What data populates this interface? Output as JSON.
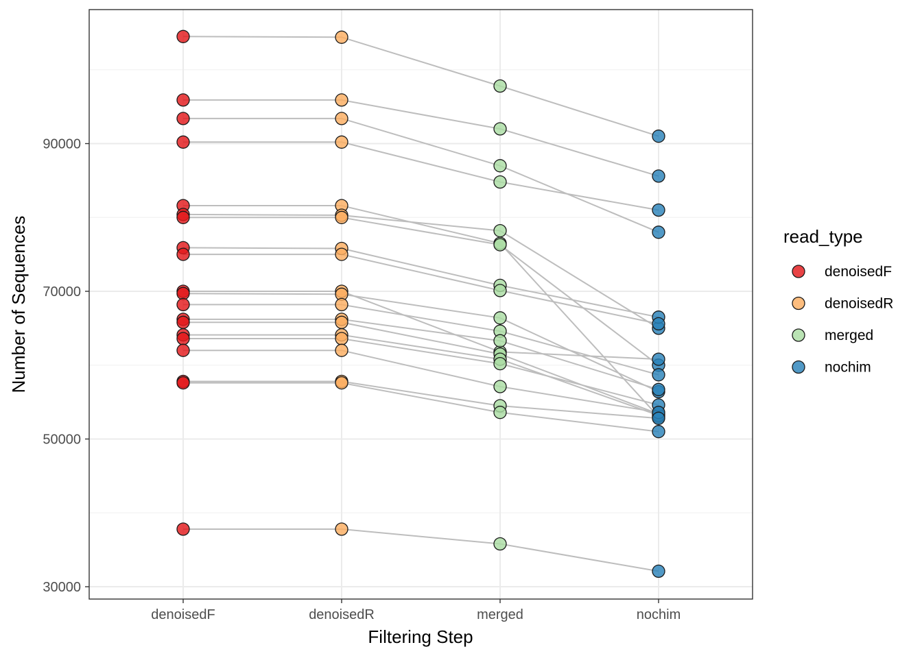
{
  "chart_data": {
    "type": "line",
    "xlabel": "Filtering Step",
    "ylabel": "Number of Sequences",
    "categories": [
      "denoisedF",
      "denoisedR",
      "merged",
      "nochim"
    ],
    "y_ticks": [
      30000,
      50000,
      70000,
      90000
    ],
    "y_tick_labels": [
      "30000",
      "50000",
      "70000",
      "90000"
    ],
    "ylim": [
      29000,
      109000
    ],
    "grid": true,
    "legend": {
      "title": "read_type",
      "placement": "right",
      "entries": [
        "denoisedF",
        "denoisedR",
        "merged",
        "nochim"
      ]
    },
    "colors": {
      "denoisedF": "#e31a1c",
      "denoisedR": "#fdae61",
      "merged": "#abdda4",
      "nochim": "#2b83ba",
      "line": "#bdbdbd"
    },
    "samples": [
      [
        104500,
        104400,
        97800,
        91000
      ],
      [
        95900,
        95900,
        92000,
        85600
      ],
      [
        93400,
        93400,
        87000,
        78000
      ],
      [
        90200,
        90200,
        84800,
        81000
      ],
      [
        81600,
        81600,
        76500,
        53000
      ],
      [
        80400,
        80300,
        78200,
        65000
      ],
      [
        80000,
        80000,
        76300,
        60000
      ],
      [
        75900,
        75800,
        70800,
        66500
      ],
      [
        75000,
        75000,
        70100,
        65600
      ],
      [
        70000,
        70000,
        61800,
        60800
      ],
      [
        69700,
        69600,
        66400,
        56400
      ],
      [
        68200,
        68200,
        64600,
        58700
      ],
      [
        66200,
        66200,
        63300,
        56700
      ],
      [
        65800,
        65800,
        61500,
        53400
      ],
      [
        64100,
        64100,
        60800,
        53200
      ],
      [
        63600,
        63600,
        60200,
        54600
      ],
      [
        62000,
        62000,
        57100,
        53600
      ],
      [
        57800,
        57800,
        54500,
        52800
      ],
      [
        57600,
        57600,
        53600,
        51000
      ],
      [
        37800,
        37800,
        35800,
        32100
      ]
    ]
  }
}
